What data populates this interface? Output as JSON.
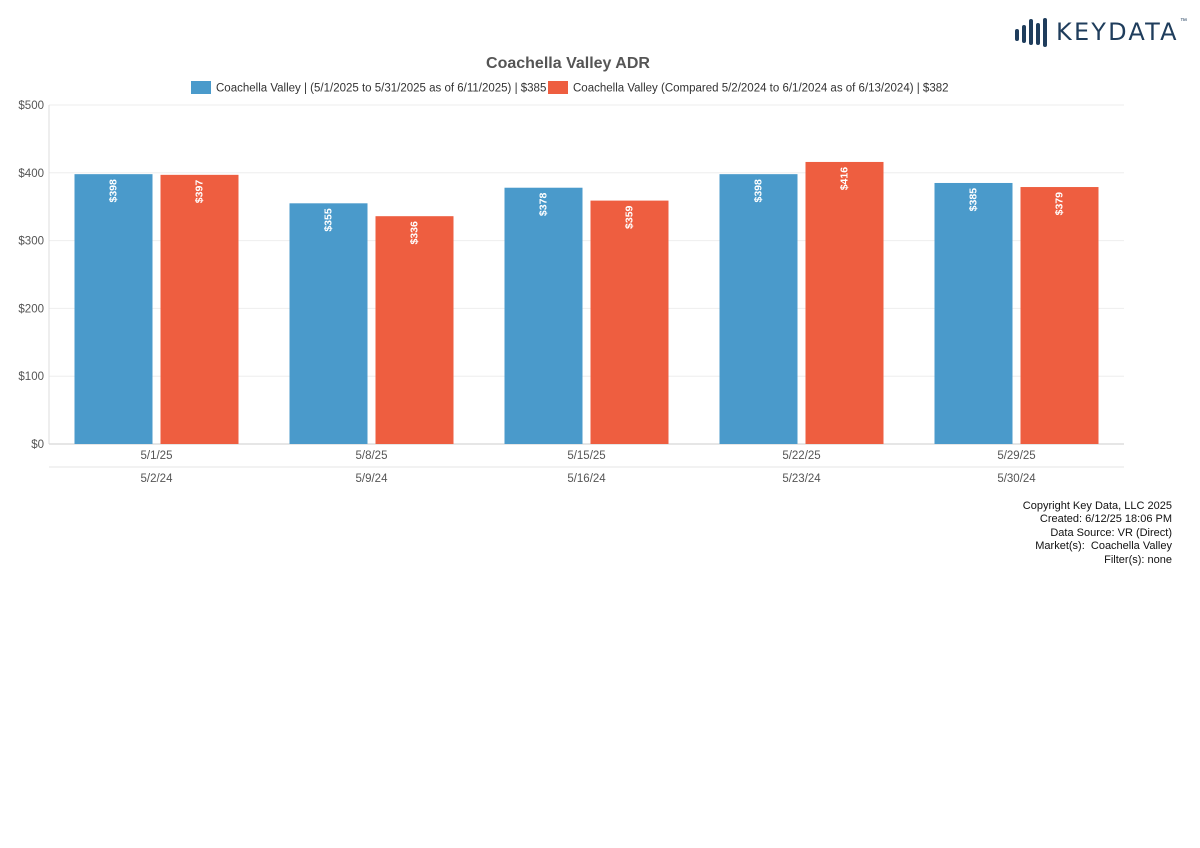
{
  "brand": {
    "name": "KEYDATA",
    "trademark": "™",
    "color": "#1f3d5c"
  },
  "chart_data": {
    "type": "bar",
    "title": "Coachella Valley ADR",
    "categories": [
      "5/1/25",
      "5/8/25",
      "5/15/25",
      "5/22/25",
      "5/29/25"
    ],
    "secondary_categories": [
      "5/2/24",
      "5/9/24",
      "5/16/24",
      "5/23/24",
      "5/30/24"
    ],
    "series": [
      {
        "name": "Coachella Valley | (5/1/2025 to 5/31/2025 as of 6/11/2025) | $385",
        "color": "#4a9acb",
        "values": [
          398,
          355,
          378,
          398,
          385
        ],
        "labels": [
          "$398",
          "$355",
          "$378",
          "$398",
          "$385"
        ]
      },
      {
        "name": "Coachella Valley (Compared 5/2/2024 to 6/1/2024 as of 6/13/2024) | $382",
        "color": "#ee5e40",
        "values": [
          397,
          336,
          359,
          416,
          379
        ],
        "labels": [
          "$397",
          "$336",
          "$359",
          "$416",
          "$379"
        ]
      }
    ],
    "ylim": [
      0,
      500
    ],
    "yticks": [
      0,
      100,
      200,
      300,
      400,
      500
    ],
    "ytick_labels": [
      "$0",
      "$100",
      "$200",
      "$300",
      "$400",
      "$500"
    ],
    "xlabel": "",
    "ylabel": "",
    "grid": true,
    "legend": "top-center"
  },
  "footer": {
    "copyright": "Copyright Key Data, LLC 2025",
    "created": "Created: 6/12/25 18:06 PM",
    "source": "Data Source: VR (Direct)",
    "market": "Market(s):  Coachella Valley",
    "filter": "Filter(s): none"
  }
}
